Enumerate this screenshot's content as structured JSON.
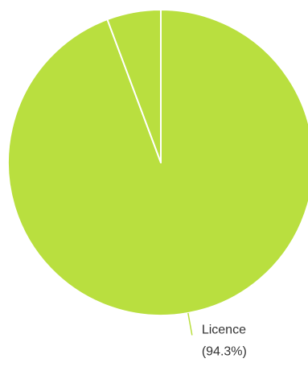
{
  "chart_data": {
    "type": "pie",
    "slices": [
      {
        "label": "Licence",
        "percent": 94.3,
        "percent_label": "(94.3%)",
        "color": "#b9df3f"
      },
      {
        "label": "",
        "percent": 5.7,
        "percent_label": "",
        "color": "#b9df3f"
      }
    ],
    "separator_color": "#ffffff",
    "leader_line_color": "#b9df3f"
  }
}
